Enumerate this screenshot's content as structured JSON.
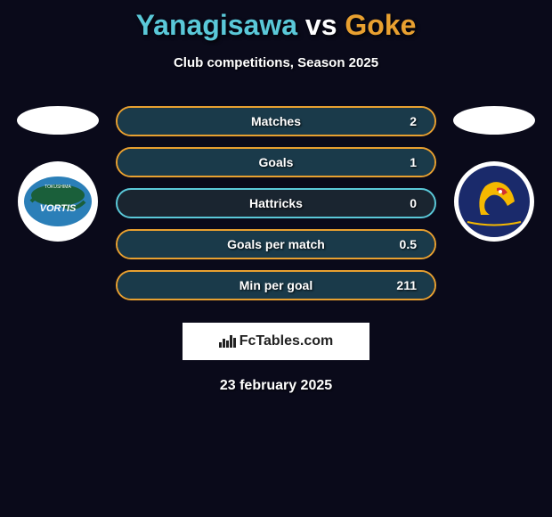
{
  "title": {
    "player1": "Yanagisawa",
    "vs": "vs",
    "player2": "Goke",
    "player1_color": "#5ac8d8",
    "vs_color": "#ffffff",
    "player2_color": "#e8a030"
  },
  "subtitle": "Club competitions, Season 2025",
  "background_color": "#0a0a1a",
  "stats": [
    {
      "label": "Matches",
      "value_right": "2",
      "fill_percent": 100,
      "border_color": "#e8a030",
      "fill_color": "#1a3a4a"
    },
    {
      "label": "Goals",
      "value_right": "1",
      "fill_percent": 100,
      "border_color": "#e8a030",
      "fill_color": "#1a3a4a"
    },
    {
      "label": "Hattricks",
      "value_right": "0",
      "fill_percent": 0,
      "border_color": "#5ac8d8",
      "fill_color": "#1a3a4a"
    },
    {
      "label": "Goals per match",
      "value_right": "0.5",
      "fill_percent": 100,
      "border_color": "#e8a030",
      "fill_color": "#1a3a4a"
    },
    {
      "label": "Min per goal",
      "value_right": "211",
      "fill_percent": 100,
      "border_color": "#e8a030",
      "fill_color": "#1a3a4a"
    }
  ],
  "team1": {
    "name": "Tokushima Vortis",
    "logo_bg": "#ffffff",
    "logo_primary": "#1a5f3a",
    "logo_secondary": "#2b7fb8",
    "logo_text": "VORTIS"
  },
  "team2": {
    "name": "Vegalta Sendai",
    "logo_bg": "#ffffff",
    "logo_primary": "#1a2a6b",
    "logo_secondary": "#f5b800",
    "logo_accent": "#d43030"
  },
  "branding": "FcTables.com",
  "date": "23 february 2025"
}
